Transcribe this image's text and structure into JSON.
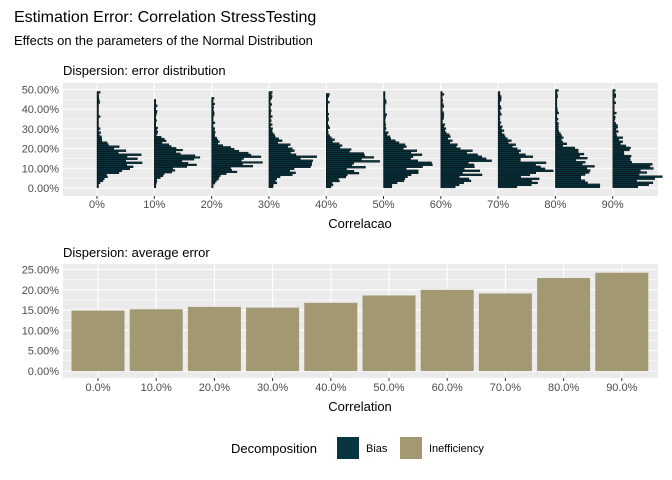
{
  "header": {
    "title": "Estimation Error: Correlation StressTesting",
    "subtitle": "Effects on the parameters of the Normal Distribution"
  },
  "colors": {
    "bias": "#073540",
    "inefficiency": "#a29872",
    "panel_bg": "#ebebeb",
    "grid": "#ffffff"
  },
  "legend": {
    "title": "Decomposition",
    "items": [
      {
        "label": "Bias",
        "color": "#073540"
      },
      {
        "label": "Inefficiency",
        "color": "#a29872"
      }
    ]
  },
  "chart_data": [
    {
      "type": "histogram",
      "title": "Dispersion: error distribution",
      "xlabel": "Correlacao",
      "ylabel": "",
      "orientation": "horizontal-per-category",
      "categories": [
        "0%",
        "10%",
        "20%",
        "30%",
        "40%",
        "50%",
        "60%",
        "70%",
        "80%",
        "90%"
      ],
      "y_ticks": [
        "0.00%",
        "10.00%",
        "20.00%",
        "30.00%",
        "40.00%",
        "50.00%"
      ],
      "ylim": [
        0,
        0.5
      ],
      "series": [
        {
          "name": "Bias",
          "center": [
            0.14,
            0.15,
            0.14,
            0.14,
            0.13,
            0.12,
            0.11,
            0.08,
            0.06,
            0.04
          ],
          "spread": [
            0.05,
            0.05,
            0.05,
            0.06,
            0.06,
            0.07,
            0.08,
            0.09,
            0.1,
            0.11
          ],
          "max_error": [
            0.49,
            0.45,
            0.46,
            0.49,
            0.48,
            0.49,
            0.49,
            0.49,
            0.5,
            0.5
          ]
        }
      ],
      "grid": true
    },
    {
      "type": "bar",
      "title": "Dispersion: average error",
      "xlabel": "Correlation",
      "ylabel": "",
      "categories": [
        "0.0%",
        "10.0%",
        "20.0%",
        "30.0%",
        "40.0%",
        "50.0%",
        "60.0%",
        "70.0%",
        "80.0%",
        "90.0%"
      ],
      "values": [
        0.149,
        0.152,
        0.158,
        0.156,
        0.168,
        0.186,
        0.2,
        0.191,
        0.229,
        0.242
      ],
      "y_ticks": [
        "0.00%",
        "5.00%",
        "10.00%",
        "15.00%",
        "20.00%",
        "25.00%"
      ],
      "ylim": [
        0,
        0.25
      ],
      "series": [
        {
          "name": "Inefficiency",
          "values": [
            0.149,
            0.152,
            0.158,
            0.156,
            0.168,
            0.186,
            0.2,
            0.191,
            0.229,
            0.242
          ]
        }
      ],
      "grid": true
    }
  ]
}
